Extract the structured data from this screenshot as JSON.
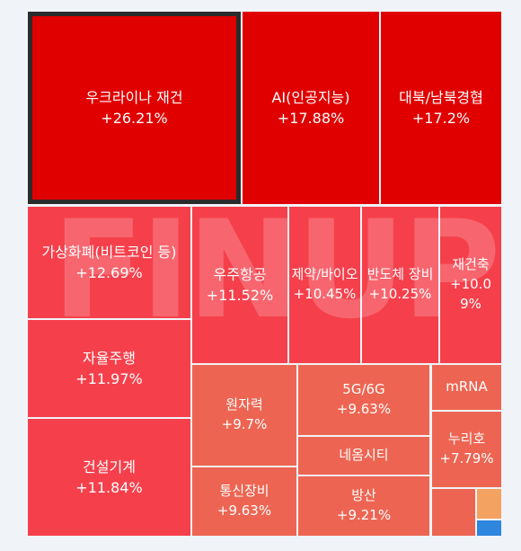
{
  "watermark": "FINUP",
  "colors": {
    "background": "#f0f3f8",
    "strong_red": "#e00000",
    "medium_red": "#f5404c",
    "light_red": "#ed6552",
    "orange": "#f4a261",
    "blue": "#2e86de",
    "selected_border": "#2b2b2b"
  },
  "chart_data": {
    "type": "treemap",
    "title": "",
    "unit": "%",
    "tiles": [
      {
        "name": "우크라이나 재건",
        "change": "+26.21%",
        "value": 26.21,
        "selected": true
      },
      {
        "name": "AI(인공지능)",
        "change": "+17.88%",
        "value": 17.88
      },
      {
        "name": "대북/남북경협",
        "change": "+17.2%",
        "value": 17.2
      },
      {
        "name": "가상화폐(비트코인 등)",
        "change": "+12.69%",
        "value": 12.69
      },
      {
        "name": "우주항공",
        "change": "+11.52%",
        "value": 11.52
      },
      {
        "name": "제약/바이오",
        "change": "+10.45%",
        "value": 10.45
      },
      {
        "name": "반도체 장비",
        "change": "+10.25%",
        "value": 10.25
      },
      {
        "name": "재건축",
        "change": "+10.09%",
        "value": 10.09
      },
      {
        "name": "자율주행",
        "change": "+11.97%",
        "value": 11.97
      },
      {
        "name": "건설기계",
        "change": "+11.84%",
        "value": 11.84
      },
      {
        "name": "원자력",
        "change": "+9.7%",
        "value": 9.7
      },
      {
        "name": "5G/6G",
        "change": "+9.63%",
        "value": 9.63
      },
      {
        "name": "mRNA",
        "change": "",
        "value": null
      },
      {
        "name": "네옴시티",
        "change": "",
        "value": null
      },
      {
        "name": "누리호",
        "change": "+7.79%",
        "value": 7.79
      },
      {
        "name": "통신장비",
        "change": "+9.63%",
        "value": 9.63
      },
      {
        "name": "방산",
        "change": "+9.21%",
        "value": 9.21
      },
      {
        "name": "",
        "change": "",
        "value": null
      },
      {
        "name": "",
        "change": "",
        "value": null
      },
      {
        "name": "",
        "change": "",
        "value": null
      }
    ]
  }
}
